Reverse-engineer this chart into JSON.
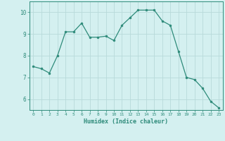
{
  "x": [
    0,
    1,
    2,
    3,
    4,
    5,
    6,
    7,
    8,
    9,
    10,
    11,
    12,
    13,
    14,
    15,
    16,
    17,
    18,
    19,
    20,
    21,
    22,
    23
  ],
  "y": [
    7.5,
    7.4,
    7.2,
    8.0,
    9.1,
    9.1,
    9.5,
    8.85,
    8.85,
    8.9,
    8.7,
    9.4,
    9.75,
    10.1,
    10.1,
    10.1,
    9.6,
    9.4,
    8.2,
    7.0,
    6.9,
    6.5,
    5.9,
    5.6
  ],
  "line_color": "#2e8b7a",
  "marker_color": "#2e8b7a",
  "bg_color": "#d4f0f0",
  "grid_color": "#b8dada",
  "axis_color": "#2e8b7a",
  "xlabel": "Humidex (Indice chaleur)",
  "ylim": [
    5.5,
    10.5
  ],
  "xlim": [
    -0.5,
    23.5
  ],
  "yticks": [
    6,
    7,
    8,
    9,
    10
  ],
  "xticks": [
    0,
    1,
    2,
    3,
    4,
    5,
    6,
    7,
    8,
    9,
    10,
    11,
    12,
    13,
    14,
    15,
    16,
    17,
    18,
    19,
    20,
    21,
    22,
    23
  ]
}
